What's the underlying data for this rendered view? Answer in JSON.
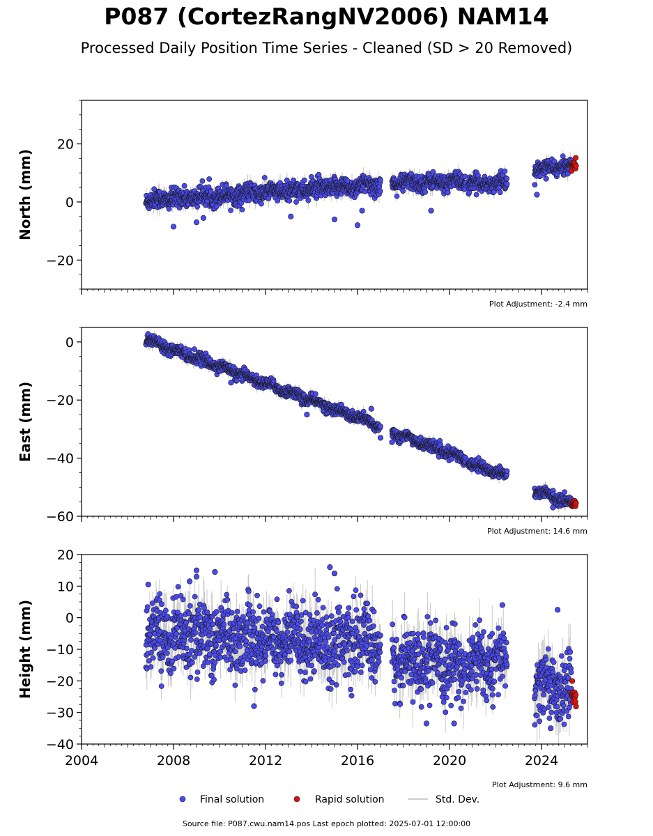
{
  "title": "P087 (CortezRangNV2006) NAM14",
  "subtitle": "Processed Daily Position Time Series - Cleaned (SD > 20 Removed)",
  "source_line": "Source file: P087.cwu.nam14.pos  Last epoch plotted: 2025-07-01 12:00:00",
  "legend": {
    "final": "Final solution",
    "rapid": "Rapid solution",
    "std": "Std. Dev."
  },
  "colors": {
    "final": "#4a4af0",
    "rapid": "#e01010",
    "std": "#b0b0b0",
    "outline": "#1a1a1a"
  },
  "chart_data": [
    {
      "type": "scatter",
      "ylabel": "North (mm)",
      "adjustment": "Plot Adjustment: -2.4 mm",
      "xlim": [
        2004,
        2026
      ],
      "ylim": [
        -30,
        35
      ],
      "yticks": [
        -20,
        0,
        20
      ],
      "ytick_labels": [
        "−20",
        "0",
        "20"
      ],
      "segments": [
        {
          "start": 2006.8,
          "end": 2017.0,
          "y0": 0.5,
          "y1": 6.0,
          "scatter": 1.6,
          "sd": 2.2
        },
        {
          "start": 2017.5,
          "end": 2020.7,
          "y0": 6.5,
          "y1": 7.0,
          "scatter": 1.4,
          "sd": 2.0
        },
        {
          "start": 2020.8,
          "end": 2022.5,
          "y0": 6.0,
          "y1": 6.8,
          "scatter": 1.4,
          "sd": 2.0
        },
        {
          "start": 2023.7,
          "end": 2025.3,
          "y0": 11.0,
          "y1": 12.5,
          "scatter": 1.2,
          "sd": 1.8
        }
      ],
      "rapid": {
        "start": 2025.3,
        "end": 2025.5,
        "y": 12.5,
        "scatter": 0.8
      },
      "outliers": [
        [
          2008.0,
          -8.5
        ],
        [
          2009.0,
          -7.0
        ],
        [
          2009.3,
          -5.5
        ],
        [
          2013.1,
          -5.0
        ],
        [
          2015.0,
          -6.0
        ],
        [
          2016.0,
          -8.0
        ],
        [
          2016.2,
          -3.0
        ],
        [
          2019.2,
          -3.0
        ],
        [
          2023.8,
          2.5
        ],
        [
          2024.2,
          8.0
        ]
      ]
    },
    {
      "type": "scatter",
      "ylabel": "East (mm)",
      "adjustment": "Plot Adjustment: 14.6 mm",
      "xlim": [
        2004,
        2026
      ],
      "ylim": [
        -60,
        5
      ],
      "yticks": [
        -60,
        -40,
        -20,
        0
      ],
      "ytick_labels": [
        "−60",
        "−40",
        "−20",
        "0"
      ],
      "segments": [
        {
          "start": 2006.8,
          "end": 2017.0,
          "y0": 1.0,
          "y1": -29.0,
          "scatter": 0.9,
          "sd": 1.5
        },
        {
          "start": 2017.5,
          "end": 2020.7,
          "y0": -31.0,
          "y1": -40.5,
          "scatter": 0.9,
          "sd": 1.5
        },
        {
          "start": 2020.8,
          "end": 2022.5,
          "y0": -41.5,
          "y1": -46.0,
          "scatter": 0.9,
          "sd": 1.5
        },
        {
          "start": 2023.7,
          "end": 2025.3,
          "y0": -51.0,
          "y1": -55.5,
          "scatter": 0.9,
          "sd": 1.5
        }
      ],
      "rapid": {
        "start": 2025.3,
        "end": 2025.5,
        "y": -56.0,
        "scatter": 0.6
      },
      "outliers": [
        [
          2010.5,
          -14.0
        ],
        [
          2013.8,
          -25.0
        ],
        [
          2016.6,
          -23.0
        ],
        [
          2017.0,
          -33.0
        ],
        [
          2017.5,
          -34.5
        ],
        [
          2024.5,
          -57.0
        ]
      ]
    },
    {
      "type": "scatter",
      "ylabel": "Height (mm)",
      "adjustment": "Plot Adjustment: 9.6 mm",
      "xlim": [
        2004,
        2026
      ],
      "ylim": [
        -40,
        20
      ],
      "yticks": [
        -40,
        -30,
        -20,
        -10,
        0,
        10,
        20
      ],
      "ytick_labels": [
        "−40",
        "−30",
        "−20",
        "−10",
        "0",
        "10",
        "20"
      ],
      "segments": [
        {
          "start": 2006.8,
          "end": 2017.0,
          "y0": -5.0,
          "y1": -8.0,
          "scatter": 5.5,
          "sd": 6.0
        },
        {
          "start": 2017.5,
          "end": 2020.7,
          "y0": -13.0,
          "y1": -16.0,
          "scatter": 5.0,
          "sd": 6.0
        },
        {
          "start": 2020.8,
          "end": 2022.5,
          "y0": -14.0,
          "y1": -15.0,
          "scatter": 5.0,
          "sd": 6.0
        },
        {
          "start": 2023.7,
          "end": 2025.3,
          "y0": -21.0,
          "y1": -23.0,
          "scatter": 5.0,
          "sd": 6.0
        }
      ],
      "rapid": {
        "start": 2025.3,
        "end": 2025.5,
        "y": -25.0,
        "scatter": 2.0
      },
      "outliers": [
        [
          2006.9,
          10.5
        ],
        [
          2008.7,
          11.5
        ],
        [
          2009.0,
          15.0
        ],
        [
          2009.0,
          13.0
        ],
        [
          2009.8,
          14.5
        ],
        [
          2014.8,
          16.0
        ],
        [
          2015.0,
          14.0
        ],
        [
          2022.3,
          4.0
        ],
        [
          2019.0,
          -33.5
        ],
        [
          2020.2,
          -33.5
        ],
        [
          2011.5,
          -28.0
        ],
        [
          2024.7,
          2.5
        ],
        [
          2024.4,
          -35.0
        ]
      ]
    }
  ],
  "x_tick_labels": [
    "2004",
    "2008",
    "2012",
    "2016",
    "2020",
    "2024"
  ],
  "x_ticks": [
    2004,
    2008,
    2012,
    2016,
    2020,
    2024
  ]
}
